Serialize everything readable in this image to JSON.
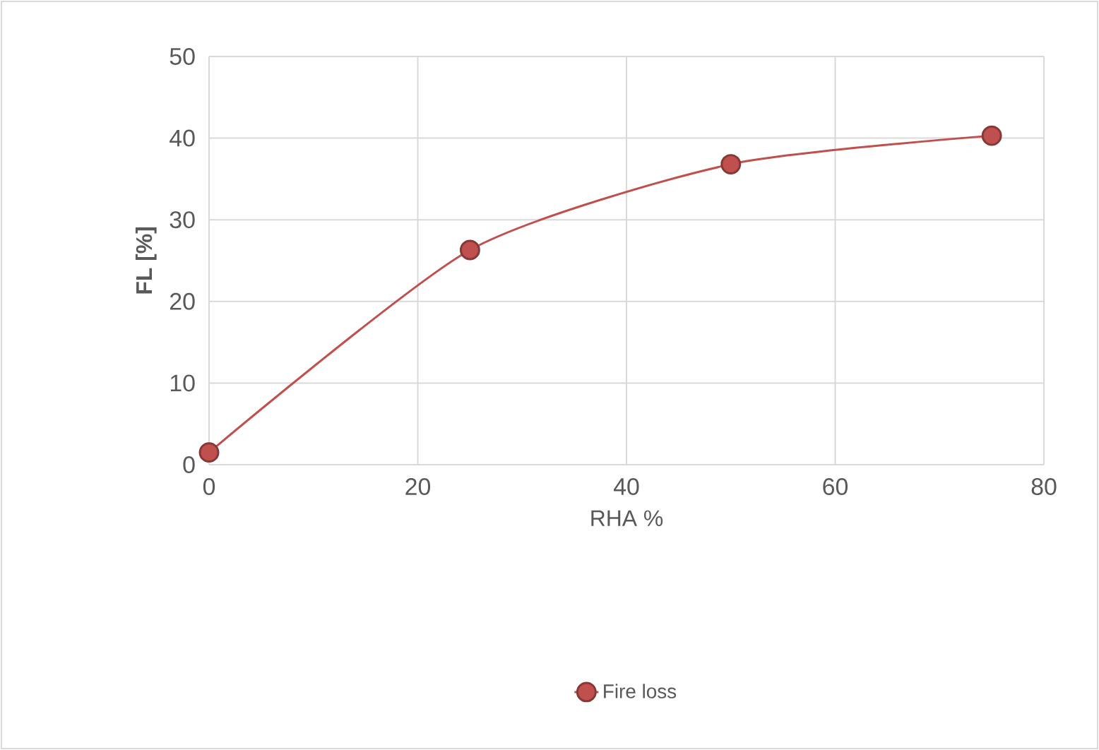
{
  "chart_data": {
    "type": "line",
    "xlabel": "RHA %",
    "ylabel": "FL [%]",
    "x": [
      0,
      25,
      50,
      75
    ],
    "series": [
      {
        "name": "Fire loss",
        "color": "#c0504d",
        "values": [
          1.5,
          26.3,
          36.8,
          40.3
        ]
      }
    ],
    "xlim": [
      0,
      80
    ],
    "ylim": [
      0,
      50
    ],
    "xticks": [
      0,
      20,
      40,
      60,
      80
    ],
    "yticks": [
      0,
      10,
      20,
      30,
      40,
      50
    ],
    "grid": true,
    "legend": "bottom",
    "marker": "circle",
    "line_style": "solid"
  }
}
